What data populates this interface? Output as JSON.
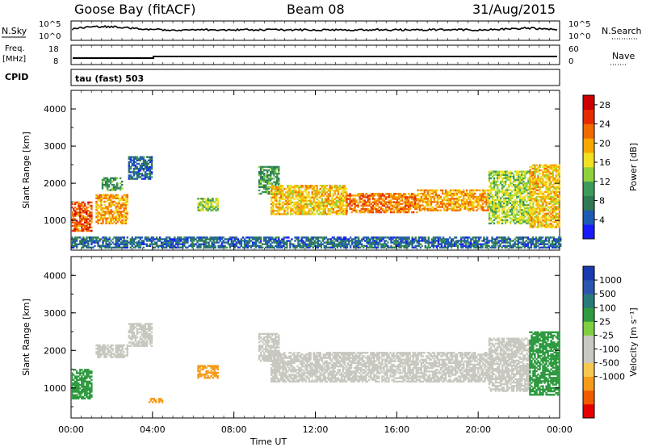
{
  "header": {
    "station": "Goose Bay (fitACF)",
    "beam": "Beam 08",
    "date": "31/Aug/2015"
  },
  "top_strips": {
    "nsky": {
      "label": "N.Sky",
      "ticks": [
        "10^5",
        "10^0"
      ],
      "right_ticks": [
        "10^5",
        "10^0"
      ],
      "right_label": "N.Search"
    },
    "freq": {
      "label_line1": "Freq.",
      "label_line2": "[MHz]",
      "ticks": [
        "18",
        "8"
      ],
      "right_ticks": [
        "60",
        "0"
      ],
      "right_label": "Nave"
    },
    "cpid": {
      "label": "CPID",
      "program": "tau (fast) 503"
    }
  },
  "colors": {
    "power": [
      "#1a1aff",
      "#1e5bb4",
      "#2f7a55",
      "#3c9a5a",
      "#8fd13b",
      "#f0e020",
      "#f7a800",
      "#f06a00",
      "#e62b00",
      "#cc0000"
    ],
    "velocity": [
      "#e60000",
      "#f05a00",
      "#f59a1a",
      "#f7c850",
      "#c8c8c0",
      "#c8c8c0",
      "#7ed040",
      "#2f9a40",
      "#2a7a7a",
      "#2a55b0",
      "#1a3ab0"
    ]
  },
  "chart_data": [
    {
      "type": "heatmap",
      "name": "power",
      "ylabel": "Slant Range [km]",
      "ylim": [
        200,
        4500
      ],
      "yticks": [
        "1000",
        "2000",
        "3000",
        "4000"
      ],
      "colorbar": {
        "label": "Power [dB]",
        "ticks": [
          "28",
          "24",
          "20",
          "16",
          "12",
          "8",
          "4"
        ],
        "range": [
          0,
          30
        ]
      },
      "xlim": [
        0,
        24
      ],
      "regions": [
        {
          "t0": 0.0,
          "t1": 1.0,
          "r0": 700,
          "r1": 1500,
          "value": 24
        },
        {
          "t0": 1.2,
          "t1": 2.8,
          "r0": 900,
          "r1": 1700,
          "value": 20
        },
        {
          "t0": 1.5,
          "t1": 2.5,
          "r0": 1800,
          "r1": 2150,
          "value": 10
        },
        {
          "t0": 2.8,
          "t1": 4.0,
          "r0": 2100,
          "r1": 2700,
          "value": 6
        },
        {
          "t0": 6.2,
          "t1": 7.2,
          "r0": 1250,
          "r1": 1600,
          "value": 14
        },
        {
          "t0": 9.2,
          "t1": 10.2,
          "r0": 1700,
          "r1": 2450,
          "value": 10
        },
        {
          "t0": 9.8,
          "t1": 13.5,
          "r0": 1150,
          "r1": 1950,
          "value": 18
        },
        {
          "t0": 13.5,
          "t1": 17.0,
          "r0": 1200,
          "r1": 1700,
          "value": 22
        },
        {
          "t0": 17.0,
          "t1": 20.5,
          "r0": 1250,
          "r1": 1800,
          "value": 20
        },
        {
          "t0": 20.5,
          "t1": 22.5,
          "r0": 900,
          "r1": 2300,
          "value": 14
        },
        {
          "t0": 22.5,
          "t1": 24.0,
          "r0": 800,
          "r1": 2500,
          "value": 18
        },
        {
          "t0": 0.0,
          "t1": 24.0,
          "r0": 250,
          "r1": 550,
          "value": 6
        }
      ]
    },
    {
      "type": "heatmap",
      "name": "velocity",
      "ylabel": "Slant Range [km]",
      "ylim": [
        200,
        4500
      ],
      "yticks": [
        "1000",
        "2000",
        "3000",
        "4000"
      ],
      "xlabel": "Time UT",
      "xticks": [
        "00:00",
        "04:00",
        "08:00",
        "12:00",
        "16:00",
        "20:00",
        "00:00"
      ],
      "colorbar": {
        "label": "Velocity [m s⁻¹]",
        "ticks": [
          "1000",
          "500",
          "100",
          "25",
          "-25",
          "-100",
          "-500",
          "-1000"
        ]
      },
      "xlim": [
        0,
        24
      ],
      "regions": [
        {
          "t0": 0.0,
          "t1": 1.0,
          "r0": 700,
          "r1": 1500,
          "value": 150
        },
        {
          "t0": 1.2,
          "t1": 2.8,
          "r0": 1800,
          "r1": 2150,
          "value": 0
        },
        {
          "t0": 2.8,
          "t1": 4.0,
          "r0": 2100,
          "r1": 2700,
          "value": 0
        },
        {
          "t0": 3.8,
          "t1": 4.5,
          "r0": 600,
          "r1": 700,
          "value": -300
        },
        {
          "t0": 6.2,
          "t1": 7.2,
          "r0": 1250,
          "r1": 1600,
          "value": -300
        },
        {
          "t0": 9.2,
          "t1": 10.2,
          "r0": 1700,
          "r1": 2450,
          "value": 0
        },
        {
          "t0": 9.8,
          "t1": 20.5,
          "r0": 1150,
          "r1": 1950,
          "value": 0
        },
        {
          "t0": 20.5,
          "t1": 22.5,
          "r0": 900,
          "r1": 2300,
          "value": 0
        },
        {
          "t0": 22.5,
          "t1": 24.0,
          "r0": 800,
          "r1": 2500,
          "value": 150
        }
      ]
    }
  ]
}
